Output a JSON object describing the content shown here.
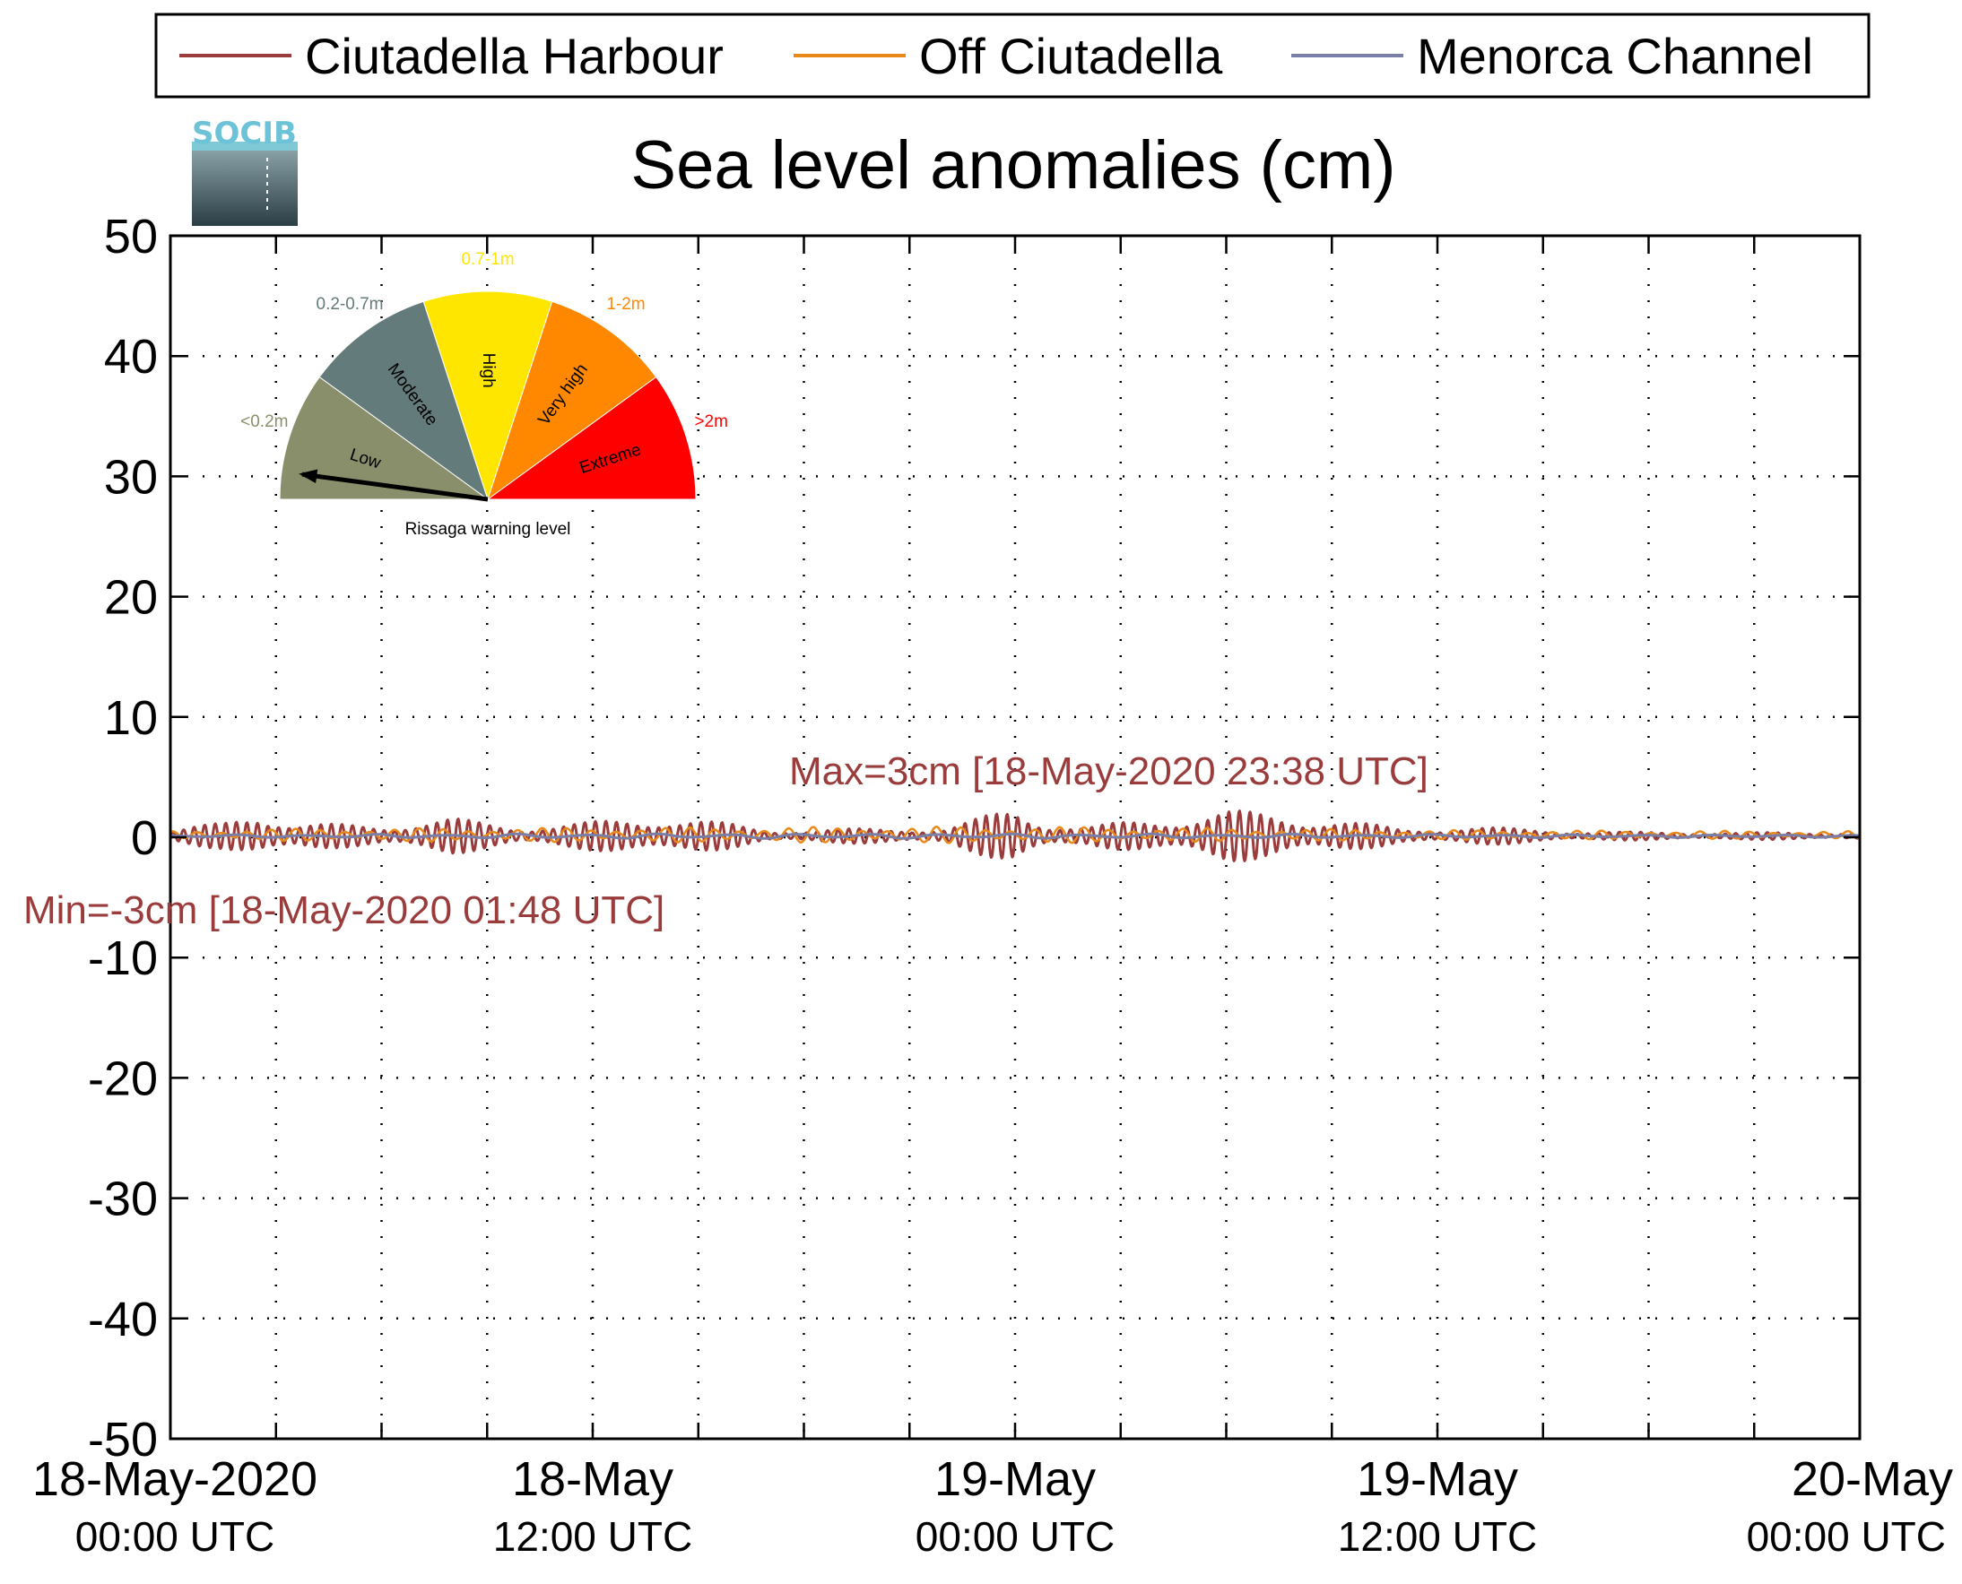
{
  "chart_data": {
    "type": "line",
    "title": "Sea level anomalies (cm)",
    "ylim": [
      -50,
      50
    ],
    "yticks": [
      50,
      40,
      30,
      20,
      10,
      0,
      -10,
      -20,
      -30,
      -40,
      -50
    ],
    "ytick_labels": [
      "50",
      "40",
      "30",
      "20",
      "10",
      "0",
      "-10",
      "-20",
      "-30",
      "-40",
      "-50"
    ],
    "xlim_hours": [
      0,
      48
    ],
    "xtick_major_hours": [
      0,
      12,
      24,
      36,
      48
    ],
    "xtick_minor_hours": [
      3,
      6,
      9,
      15,
      18,
      21,
      27,
      30,
      33,
      39,
      42,
      45
    ],
    "xtick_labels": [
      {
        "date": "18-May-2020",
        "time": "00:00 UTC"
      },
      {
        "date": "18-May",
        "time": "12:00 UTC"
      },
      {
        "date": "19-May",
        "time": "00:00 UTC"
      },
      {
        "date": "19-May",
        "time": "12:00 UTC"
      },
      {
        "date": "20-May",
        "time": "00:00 UTC"
      }
    ],
    "grid": true,
    "legend_position": "top",
    "series": [
      {
        "name": "Ciutadella Harbour",
        "color": "#9a3c3c",
        "oscillation_envelope_cm": [
          [
            0,
            0.4
          ],
          [
            1.5,
            1.2
          ],
          [
            2.5,
            2.5
          ],
          [
            3.5,
            1.0
          ],
          [
            6,
            1.0
          ],
          [
            8,
            1.5
          ],
          [
            10,
            0.8
          ],
          [
            12,
            1.2
          ],
          [
            14,
            1.8
          ],
          [
            16,
            1.0
          ],
          [
            17,
            0.5
          ],
          [
            19,
            0.6
          ],
          [
            22,
            0.7
          ],
          [
            24,
            2.4
          ],
          [
            25,
            1.2
          ],
          [
            26,
            0.8
          ],
          [
            28,
            1.5
          ],
          [
            30,
            2.2
          ],
          [
            33,
            1.5
          ],
          [
            35,
            0.6
          ],
          [
            37,
            0.8
          ],
          [
            40,
            0.4
          ],
          [
            43,
            0.3
          ],
          [
            46,
            0.3
          ],
          [
            48,
            0.3
          ]
        ]
      },
      {
        "name": "Off Ciutadella",
        "color": "#e8891a",
        "oscillation_envelope_cm": [
          [
            0,
            0.3
          ],
          [
            3,
            0.5
          ],
          [
            12,
            0.6
          ],
          [
            24,
            0.7
          ],
          [
            36,
            0.4
          ],
          [
            48,
            0.3
          ]
        ]
      },
      {
        "name": "Menorca Channel",
        "color": "#7a7fa8",
        "oscillation_envelope_cm": [
          [
            0,
            0.1
          ],
          [
            12,
            0.2
          ],
          [
            24,
            0.2
          ],
          [
            36,
            0.15
          ],
          [
            48,
            0.1
          ]
        ]
      }
    ],
    "annotations": [
      {
        "text": "Max=3cm [18-May-2020 23:38 UTC]",
        "color": "#9a3c3c"
      },
      {
        "text": "Min=-3cm [18-May-2020 01:48 UTC]",
        "color": "#9a3c3c"
      }
    ],
    "gauge": {
      "caption": "Rissaga warning level",
      "needle_level": "Low",
      "sectors": [
        {
          "level": "Low",
          "range": "<0.2m",
          "color": "#8a8f6b"
        },
        {
          "level": "Moderate",
          "range": "0.2-0.7m",
          "color": "#637b7a"
        },
        {
          "level": "High",
          "range": "0.7-1m",
          "color": "#ffe600"
        },
        {
          "level": "Very high",
          "range": "1-2m",
          "color": "#ff8800"
        },
        {
          "level": "Extreme",
          "range": ">2m",
          "color": "#ff0000"
        }
      ]
    },
    "logo_text": "SOCIB"
  }
}
